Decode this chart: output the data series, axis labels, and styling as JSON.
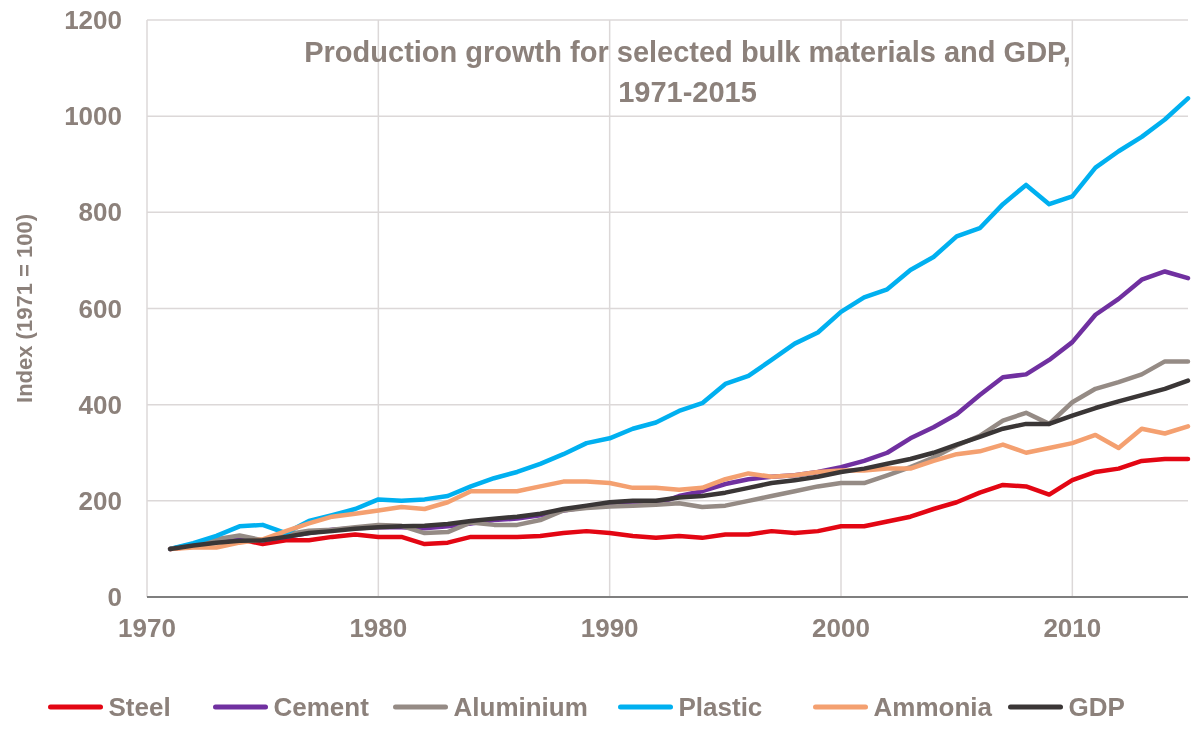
{
  "chart_data": {
    "type": "line",
    "title": "Production growth for selected bulk materials and GDP, 1971-2015",
    "ylabel": "Index (1971 = 100)",
    "x": [
      1971,
      1972,
      1973,
      1974,
      1975,
      1976,
      1977,
      1978,
      1979,
      1980,
      1981,
      1982,
      1983,
      1984,
      1985,
      1986,
      1987,
      1988,
      1989,
      1990,
      1991,
      1992,
      1993,
      1994,
      1995,
      1996,
      1997,
      1998,
      1999,
      2000,
      2001,
      2002,
      2003,
      2004,
      2005,
      2006,
      2007,
      2008,
      2009,
      2010,
      2011,
      2012,
      2013,
      2014,
      2015
    ],
    "xlim": [
      1970,
      2015
    ],
    "xticks": [
      1970,
      1980,
      1990,
      2000,
      2010
    ],
    "ylim": [
      0,
      1200
    ],
    "yticks": [
      0,
      200,
      400,
      600,
      800,
      1000,
      1200
    ],
    "grid": true,
    "legend": "bottom",
    "line_style": "solid",
    "series": [
      {
        "name": "Steel",
        "color": "#e30613",
        "values": [
          100,
          105,
          115,
          120,
          110,
          118,
          118,
          125,
          130,
          125,
          125,
          110,
          113,
          125,
          125,
          125,
          127,
          133,
          137,
          133,
          127,
          123,
          127,
          123,
          130,
          130,
          137,
          133,
          137,
          147,
          147,
          157,
          167,
          183,
          197,
          217,
          233,
          230,
          213,
          243,
          260,
          267,
          283,
          287,
          287
        ]
      },
      {
        "name": "Cement",
        "color": "#7030a0",
        "values": [
          100,
          108,
          117,
          122,
          118,
          125,
          133,
          140,
          143,
          145,
          145,
          143,
          147,
          153,
          160,
          163,
          170,
          180,
          187,
          190,
          193,
          193,
          210,
          220,
          235,
          245,
          250,
          253,
          260,
          270,
          283,
          300,
          330,
          353,
          380,
          420,
          457,
          463,
          493,
          530,
          587,
          620,
          660,
          677,
          663
        ]
      },
      {
        "name": "Aluminium",
        "color": "#958b85",
        "values": [
          100,
          110,
          120,
          128,
          118,
          130,
          138,
          140,
          145,
          150,
          148,
          133,
          135,
          155,
          150,
          150,
          160,
          180,
          185,
          188,
          190,
          192,
          195,
          187,
          190,
          200,
          210,
          220,
          230,
          237,
          237,
          253,
          270,
          290,
          315,
          335,
          367,
          383,
          360,
          405,
          433,
          447,
          463,
          490,
          490
        ]
      },
      {
        "name": "Plastic",
        "color": "#00b0f0",
        "values": [
          100,
          112,
          127,
          147,
          150,
          133,
          158,
          170,
          183,
          203,
          200,
          203,
          210,
          230,
          247,
          260,
          277,
          297,
          320,
          330,
          350,
          363,
          387,
          403,
          443,
          460,
          493,
          527,
          550,
          593,
          623,
          640,
          680,
          707,
          750,
          767,
          817,
          857,
          817,
          833,
          893,
          927,
          957,
          993,
          1037
        ]
      },
      {
        "name": "Ammonia",
        "color": "#f4a070",
        "values": [
          100,
          103,
          103,
          113,
          120,
          137,
          153,
          167,
          173,
          180,
          187,
          183,
          197,
          220,
          220,
          220,
          230,
          240,
          240,
          237,
          227,
          227,
          223,
          227,
          245,
          257,
          250,
          253,
          260,
          263,
          263,
          267,
          267,
          283,
          297,
          303,
          317,
          300,
          310,
          320,
          337,
          310,
          350,
          340,
          355
        ]
      },
      {
        "name": "GDP",
        "color": "#3a3636",
        "values": [
          100,
          107,
          113,
          117,
          118,
          125,
          133,
          137,
          142,
          145,
          147,
          148,
          152,
          158,
          163,
          167,
          173,
          183,
          190,
          197,
          200,
          200,
          207,
          210,
          217,
          227,
          237,
          243,
          250,
          260,
          267,
          277,
          287,
          300,
          317,
          333,
          350,
          360,
          360,
          377,
          393,
          407,
          420,
          433,
          450
        ]
      }
    ]
  }
}
